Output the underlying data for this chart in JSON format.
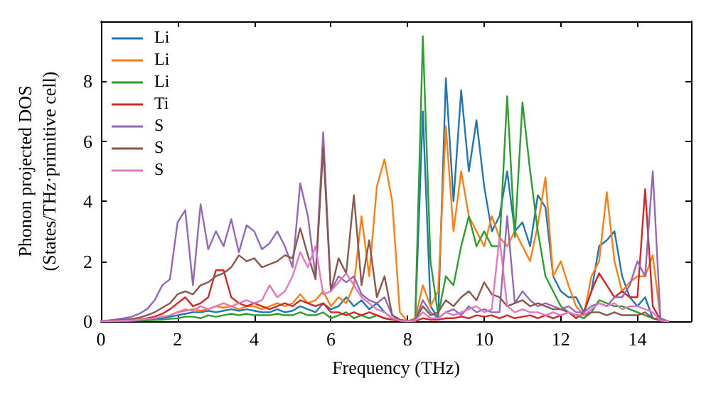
{
  "chart_data": {
    "type": "line",
    "xlabel": "Frequency (THz)",
    "ylabel": "Phonon projected DOS\n(States/THz·primitive cell)",
    "xlim": [
      0,
      15.4
    ],
    "ylim": [
      0,
      10
    ],
    "xticks": [
      0,
      2,
      4,
      6,
      8,
      10,
      12,
      14
    ],
    "yticks": [
      0,
      2,
      4,
      6,
      8
    ],
    "grid": false,
    "legend": "top left",
    "marker": "none",
    "line_style": "solid",
    "x": [
      0,
      0.2,
      0.4,
      0.6,
      0.8,
      1,
      1.2,
      1.4,
      1.6,
      1.8,
      2,
      2.2,
      2.4,
      2.6,
      2.8,
      3,
      3.2,
      3.4,
      3.6,
      3.8,
      4,
      4.2,
      4.4,
      4.6,
      4.8,
      5,
      5.2,
      5.4,
      5.6,
      5.8,
      6,
      6.2,
      6.4,
      6.6,
      6.8,
      7,
      7.2,
      7.4,
      7.6,
      7.8,
      8,
      8.2,
      8.4,
      8.6,
      8.8,
      9,
      9.2,
      9.4,
      9.6,
      9.8,
      10,
      10.2,
      10.4,
      10.6,
      10.8,
      11,
      11.2,
      11.4,
      11.6,
      11.8,
      12,
      12.2,
      12.4,
      12.6,
      12.8,
      13,
      13.2,
      13.4,
      13.6,
      13.8,
      14,
      14.2,
      14.4,
      14.6,
      14.8
    ],
    "series": [
      {
        "name": "Li",
        "color": "#1f77b4",
        "values": [
          null,
          null,
          null,
          null,
          null,
          null,
          0.06,
          0.08,
          0.1,
          0.15,
          0.2,
          0.25,
          0.3,
          0.3,
          0.35,
          0.3,
          0.35,
          0.4,
          0.35,
          0.4,
          0.35,
          0.3,
          0.3,
          0.4,
          0.3,
          0.35,
          0.5,
          0.4,
          0.3,
          0.6,
          0.4,
          0.5,
          0.8,
          0.5,
          0.7,
          0.4,
          0.6,
          0.3,
          0.1,
          0.05,
          0,
          0.05,
          7.0,
          0.5,
          0.1,
          8.1,
          4.0,
          7.7,
          5.0,
          6.7,
          4.5,
          3.0,
          3.5,
          5.0,
          3.0,
          3.3,
          2.5,
          4.2,
          3.8,
          1.5,
          1.0,
          0.8,
          0.8,
          0.3,
          1.0,
          2.5,
          2.7,
          3.0,
          1.5,
          0.8,
          0.5,
          0.8,
          0.1,
          0.05,
          0
        ]
      },
      {
        "name": "Li",
        "color": "#ff7f0e",
        "values": [
          null,
          null,
          null,
          null,
          null,
          null,
          null,
          null,
          null,
          0.2,
          0.3,
          0.35,
          0.4,
          0.35,
          0.4,
          0.5,
          0.45,
          0.5,
          0.4,
          0.5,
          0.5,
          0.4,
          0.5,
          0.6,
          0.5,
          0.6,
          0.9,
          0.6,
          0.7,
          1.0,
          0.5,
          0.8,
          0.6,
          1.2,
          3.5,
          1.5,
          4.5,
          5.4,
          4.0,
          0.3,
          0,
          0.1,
          1.2,
          0.5,
          1.0,
          6.5,
          3.0,
          5.0,
          3.5,
          3.0,
          2.5,
          3.5,
          2.8,
          2.5,
          3.0,
          2.5,
          2.0,
          3.2,
          4.8,
          1.5,
          2.0,
          1.2,
          0.5,
          0.2,
          1.5,
          2.0,
          4.3,
          2.0,
          1.0,
          1.3,
          1.5,
          1.5,
          2.2,
          0.1,
          0
        ]
      },
      {
        "name": "Li",
        "color": "#2ca02c",
        "values": [
          null,
          null,
          0,
          0,
          0.01,
          0.02,
          0.03,
          0.04,
          0.05,
          0.08,
          0.1,
          0.15,
          0.15,
          0.1,
          0.2,
          0.15,
          0.2,
          0.25,
          0.2,
          0.25,
          0.2,
          0.2,
          0.2,
          0.25,
          0.2,
          0.2,
          0.3,
          0.2,
          0.2,
          0.3,
          0.1,
          0.2,
          0.3,
          0.1,
          0.2,
          0.1,
          0.2,
          0.1,
          0.05,
          0.02,
          0,
          0.05,
          9.5,
          2.0,
          0.2,
          1.5,
          1.2,
          2.5,
          3.5,
          2.5,
          3.0,
          2.5,
          2.5,
          7.5,
          2.8,
          7.3,
          5.0,
          3.0,
          1.5,
          1.0,
          0.5,
          0.3,
          0.2,
          0.1,
          0.3,
          0.7,
          0.6,
          0.5,
          0.5,
          0.4,
          0.3,
          0.2,
          0.1,
          0.05,
          0
        ]
      },
      {
        "name": "Ti",
        "color": "#d62728",
        "values": [
          0,
          0,
          0.01,
          0.02,
          0.04,
          0.06,
          0.1,
          0.15,
          0.25,
          0.4,
          0.6,
          0.8,
          0.5,
          0.6,
          0.8,
          1.7,
          1.7,
          0.8,
          0.6,
          0.5,
          0.6,
          0.5,
          0.4,
          0.5,
          0.6,
          0.5,
          0.7,
          0.6,
          0.5,
          0.6,
          0.3,
          0.3,
          0.2,
          0.3,
          0.2,
          0.3,
          0.2,
          0.1,
          0.05,
          0.02,
          0,
          0,
          0.1,
          0.05,
          0.05,
          0.1,
          0.1,
          0.15,
          0.1,
          0.2,
          0.15,
          0.2,
          0.1,
          0.2,
          0.1,
          0.15,
          0.2,
          0.1,
          0.2,
          0.1,
          0.2,
          0.3,
          0.1,
          0.3,
          1.0,
          1.6,
          1.2,
          0.8,
          1.0,
          0.8,
          0.8,
          4.4,
          0.5,
          0.05,
          0
        ]
      },
      {
        "name": "S",
        "color": "#9467bd",
        "values": [
          0.01,
          0.03,
          0.06,
          0.1,
          0.15,
          0.25,
          0.4,
          0.7,
          1.2,
          1.4,
          3.3,
          3.7,
          1.2,
          3.9,
          2.4,
          3.0,
          2.5,
          3.4,
          2.3,
          3.2,
          3.0,
          2.4,
          2.6,
          3.0,
          2.5,
          1.8,
          4.6,
          3.5,
          1.5,
          6.3,
          1.0,
          1.5,
          1.3,
          1.5,
          0.9,
          0.7,
          0.6,
          0.8,
          0.2,
          0.05,
          0,
          0.05,
          0.7,
          0.3,
          0.1,
          0.3,
          0.4,
          0.2,
          0.5,
          0.3,
          0.4,
          0.3,
          0.3,
          3.5,
          0.6,
          1.0,
          0.7,
          0.5,
          0.6,
          0.5,
          0.4,
          0.5,
          0.3,
          0.3,
          0.5,
          0.6,
          0.5,
          0.8,
          0.8,
          1.2,
          2.0,
          1.5,
          5.0,
          0.1,
          0
        ]
      },
      {
        "name": "S",
        "color": "#8c564b",
        "values": [
          0,
          0.01,
          0.03,
          0.05,
          0.08,
          0.12,
          0.2,
          0.3,
          0.45,
          0.6,
          0.9,
          1.0,
          0.9,
          1.2,
          1.3,
          1.5,
          1.6,
          1.8,
          2.2,
          2.0,
          2.1,
          1.8,
          1.9,
          2.0,
          2.2,
          2.1,
          3.1,
          2.2,
          1.4,
          5.8,
          1.0,
          2.1,
          1.6,
          4.2,
          1.2,
          2.7,
          0.8,
          1.5,
          0.2,
          0.05,
          0,
          0.02,
          0.5,
          0.2,
          0.3,
          0.7,
          0.5,
          0.8,
          1.0,
          0.7,
          1.3,
          0.9,
          0.8,
          0.5,
          0.6,
          0.7,
          0.5,
          0.6,
          0.5,
          0.4,
          0.4,
          0.3,
          0.2,
          0.2,
          0.3,
          0.3,
          0.2,
          0.3,
          0.2,
          0.2,
          0.2,
          0.3,
          0.1,
          0.02,
          0
        ]
      },
      {
        "name": "S",
        "color": "#e377c2",
        "values": [
          0,
          0,
          0.01,
          0.02,
          0.03,
          0.05,
          0.08,
          0.1,
          0.15,
          0.2,
          0.3,
          0.4,
          0.35,
          0.5,
          0.4,
          0.5,
          0.6,
          0.5,
          0.6,
          0.7,
          0.6,
          0.7,
          1.2,
          0.8,
          1.0,
          1.5,
          2.3,
          1.8,
          2.5,
          0.9,
          1.0,
          1.3,
          1.6,
          1.2,
          0.8,
          0.6,
          0.4,
          0.3,
          0.1,
          0.02,
          0,
          0.02,
          0.3,
          0.1,
          0.1,
          0.3,
          0.2,
          0.3,
          0.4,
          0.5,
          0.3,
          0.4,
          2.8,
          0.5,
          0.3,
          0.4,
          0.3,
          0.3,
          0.2,
          0.3,
          0.2,
          0.3,
          0.2,
          0.2,
          0.4,
          0.6,
          0.5,
          0.6,
          0.4,
          0.5,
          0.5,
          0.4,
          0.3,
          0.02,
          0
        ]
      }
    ]
  }
}
